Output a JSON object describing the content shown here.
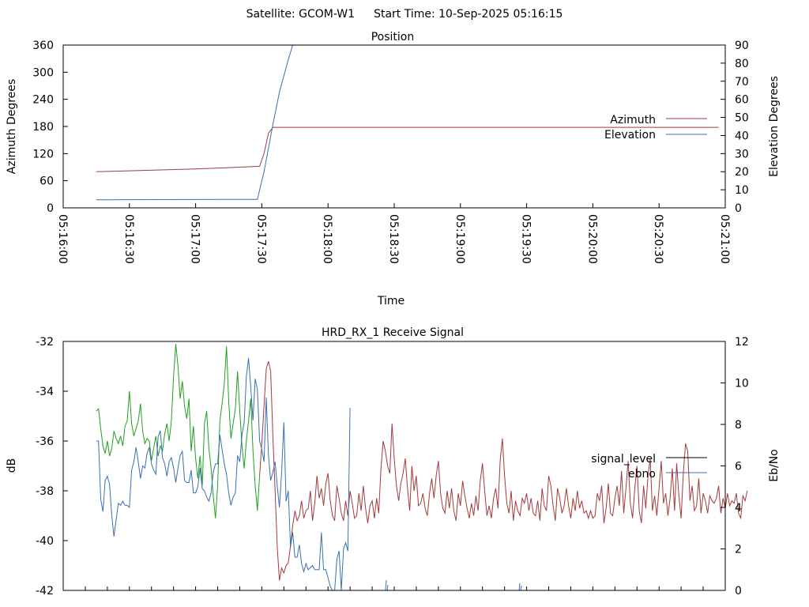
{
  "header": {
    "satellite": "Satellite: GCOM-W1",
    "start_time": "Start Time: 10-Sep-2025 05:16:15"
  },
  "chart_data": [
    {
      "type": "line",
      "title": "Position",
      "xlabel": "Time",
      "ylabel": "Azimuth Degrees",
      "y2label": "Elevation Degrees",
      "xlim": [
        "05:16:00",
        "05:21:00"
      ],
      "ylim": [
        0,
        360
      ],
      "y2lim": [
        0,
        90
      ],
      "x_ticks": [
        "05:16:00",
        "05:16:30",
        "05:17:00",
        "05:17:30",
        "05:18:00",
        "05:18:30",
        "05:19:00",
        "05:19:30",
        "05:20:00",
        "05:20:30",
        "05:21:00"
      ],
      "y_ticks": [
        "0",
        "60",
        "120",
        "180",
        "240",
        "300",
        "360"
      ],
      "y2_ticks": [
        "0",
        "10",
        "20",
        "30",
        "40",
        "50",
        "60",
        "70",
        "80",
        "90"
      ],
      "legend_position": "right",
      "series": [
        {
          "name": "Azimuth",
          "axis": "y",
          "color": "#a33a3a",
          "x": [
            "05:16:15",
            "05:16:30",
            "05:17:00",
            "05:17:15",
            "05:17:29",
            "05:17:31",
            "05:17:33",
            "05:17:35",
            "05:18:00",
            "05:20:57"
          ],
          "values": [
            80,
            82,
            86,
            89,
            92,
            120,
            165,
            178,
            178,
            178
          ]
        },
        {
          "name": "Elevation",
          "axis": "y2",
          "color": "#3a6fb0",
          "x": [
            "05:16:15",
            "05:16:20",
            "05:16:45",
            "05:17:15",
            "05:17:28",
            "05:17:31",
            "05:17:35",
            "05:17:38",
            "05:17:42",
            "05:17:44"
          ],
          "values": [
            4.5,
            4.5,
            4.6,
            4.7,
            4.7,
            20,
            46,
            64,
            82,
            90
          ]
        }
      ]
    },
    {
      "type": "line",
      "title": "HRD_RX_1 Receive Signal",
      "xlabel": "",
      "ylabel": "dB",
      "y2label": "Eb/No",
      "xlim": [
        "05:16:00",
        "05:21:00"
      ],
      "ylim": [
        -42,
        -32
      ],
      "y2lim": [
        0,
        12
      ],
      "y_ticks": [
        "-42",
        "-40",
        "-38",
        "-36",
        "-34",
        "-32"
      ],
      "y2_ticks": [
        "0",
        "2",
        "4",
        "6",
        "8",
        "10",
        "12"
      ],
      "legend_position": "right",
      "line_colors": {
        "green": "#1fa01f",
        "red": "#a33a3a",
        "black": "#000000",
        "blue": "#3a6fb0"
      },
      "series": [
        {
          "name": "signal_level",
          "axis": "y",
          "legend_color": "#000000",
          "green_until": "05:17:29",
          "x_start": "05:16:15",
          "step_seconds": 1,
          "values": [
            -34.8,
            -34.7,
            -35.5,
            -36.2,
            -36.5,
            -36.0,
            -36.6,
            -36.3,
            -35.6,
            -35.9,
            -36.1,
            -35.8,
            -36.2,
            -35.4,
            -35.2,
            -34.0,
            -35.3,
            -35.8,
            -35.5,
            -35.2,
            -34.5,
            -35.6,
            -36.1,
            -35.9,
            -36.0,
            -36.8,
            -36.3,
            -35.8,
            -36.6,
            -36.2,
            -36.4,
            -35.7,
            -35.3,
            -36.0,
            -35.2,
            -33.4,
            -32.1,
            -33.0,
            -34.3,
            -33.6,
            -34.6,
            -35.1,
            -34.3,
            -36.4,
            -35.4,
            -36.7,
            -37.5,
            -36.6,
            -37.8,
            -35.3,
            -34.8,
            -36.3,
            -37.1,
            -38.2,
            -39.1,
            -37.8,
            -35.2,
            -34.5,
            -33.7,
            -32.2,
            -34.4,
            -35.9,
            -35.3,
            -34.7,
            -33.2,
            -34.8,
            -36.2,
            -37.1,
            -36.0,
            -35.2,
            -34.3,
            -36.4,
            -37.8,
            -38.8,
            -37.4,
            -36.1,
            -34.6,
            -33.1,
            -32.8,
            -33.2,
            -35.8,
            -38.0,
            -40.3,
            -41.6,
            -41.1,
            -41.3,
            -41.0,
            -40.9,
            -40.2,
            -39.4,
            -38.8,
            -39.2,
            -39.0,
            -38.4,
            -39.1,
            -38.8,
            -38.7,
            -38.0,
            -39.2,
            -38.5,
            -37.4,
            -38.3,
            -37.9,
            -38.6,
            -37.7,
            -37.3,
            -38.4,
            -39.0,
            -39.2,
            -37.8,
            -38.3,
            -38.9,
            -39.2,
            -38.4,
            -39.0,
            -38.0,
            -38.5,
            -39.1,
            -39.0,
            -38.1,
            -38.8,
            -37.8,
            -38.7,
            -39.3,
            -38.6,
            -38.4,
            -39.1,
            -38.3,
            -38.9,
            -37.1,
            -36.0,
            -36.4,
            -37.0,
            -37.3,
            -35.3,
            -36.7,
            -37.8,
            -38.4,
            -37.7,
            -37.3,
            -36.7,
            -37.9,
            -38.8,
            -37.0,
            -38.0,
            -37.4,
            -38.6,
            -38.5,
            -38.1,
            -38.7,
            -39.0,
            -38.1,
            -37.5,
            -38.3,
            -37.4,
            -36.8,
            -38.1,
            -38.7,
            -38.9,
            -38.0,
            -38.7,
            -37.9,
            -38.8,
            -39.2,
            -38.1,
            -38.6,
            -37.6,
            -38.2,
            -38.7,
            -39.1,
            -38.5,
            -39.0,
            -38.2,
            -38.8,
            -37.6,
            -36.9,
            -38.0,
            -39.0,
            -38.6,
            -39.1,
            -38.3,
            -37.9,
            -38.7,
            -36.8,
            -35.9,
            -37.4,
            -38.5,
            -38.9,
            -38.0,
            -39.2,
            -38.4,
            -38.8,
            -39.0,
            -38.3,
            -38.5,
            -38.1,
            -38.8,
            -38.3,
            -38.9,
            -39.0,
            -38.4,
            -39.2,
            -37.9,
            -38.6,
            -38.8,
            -37.4,
            -37.8,
            -38.6,
            -39.2,
            -37.9,
            -38.3,
            -38.9,
            -38.6,
            -37.9,
            -38.6,
            -39.1,
            -38.3,
            -38.8,
            -38.0,
            -38.7,
            -38.4,
            -38.9,
            -38.8,
            -39.1,
            -38.8,
            -39.1,
            -39.0,
            -38.1,
            -38.4,
            -37.8,
            -39.3,
            -38.7,
            -37.7,
            -38.9,
            -39.0,
            -38.3,
            -37.8,
            -38.6,
            -37.2,
            -38.9,
            -37.9,
            -36.8,
            -38.5,
            -39.1,
            -37.9,
            -37.0,
            -38.8,
            -39.3,
            -37.8,
            -38.7,
            -37.4,
            -36.7,
            -38.8,
            -38.2,
            -39.0,
            -37.9,
            -36.8,
            -38.5,
            -38.1,
            -39.0,
            -38.3,
            -37.1,
            -38.8,
            -36.9,
            -38.2,
            -39.1,
            -37.3,
            -36.1,
            -36.4,
            -38.4,
            -37.8,
            -38.8,
            -38.6,
            -37.5,
            -38.9,
            -38.1,
            -38.4,
            -38.9,
            -38.2,
            -38.4,
            -38.5,
            -38.3,
            -37.8,
            -38.9,
            -38.3,
            -38.7,
            -38.1,
            -38.6,
            -38.4,
            -38.5,
            -38.1,
            -38.9,
            -39.1,
            -38.2,
            -38.4,
            -38.0
          ]
        },
        {
          "name": "ebno",
          "axis": "y2",
          "color": "#3a6fb0",
          "x_start": "05:16:15",
          "step_seconds": 1,
          "values": [
            7.2,
            7.2,
            4.4,
            3.8,
            5.3,
            5.5,
            5.1,
            3.6,
            2.6,
            3.4,
            4.2,
            4.1,
            4.3,
            4.1,
            4.1,
            4.0,
            5.8,
            6.2,
            6.9,
            6.2,
            5.4,
            6.0,
            5.9,
            6.6,
            6.9,
            6.1,
            5.8,
            5.6,
            7.4,
            7.7,
            6.4,
            6.1,
            5.5,
            6.2,
            6.4,
            5.9,
            5.2,
            5.9,
            6.5,
            6.7,
            5.3,
            5.2,
            5.2,
            5.8,
            4.7,
            4.7,
            5.0,
            5.9,
            4.9,
            4.8,
            4.5,
            4.3,
            4.7,
            5.7,
            6.1,
            6.1,
            7.5,
            6.8,
            6.1,
            5.6,
            4.7,
            4.1,
            4.5,
            4.7,
            6.5,
            6.2,
            7.5,
            8.1,
            10.3,
            11.2,
            9.8,
            8.2,
            10.2,
            9.7,
            7.2,
            6.8,
            6.2,
            9.3,
            6.5,
            5.3,
            5.7,
            6.2,
            5.0,
            4.0,
            5.7,
            8.1,
            4.3,
            4.8,
            2.1,
            2.8,
            1.6,
            1.6,
            2.2,
            1.3,
            0.9,
            1.3,
            1.0,
            1.1,
            1.2,
            1.0,
            1.0,
            1.0,
            2.8,
            1.0,
            1.0,
            0.6,
            0.2,
            0.0,
            0.0,
            1.5,
            1.9,
            0.0,
            2.0,
            2.3,
            1.9,
            8.8
          ]
        }
      ]
    }
  ]
}
